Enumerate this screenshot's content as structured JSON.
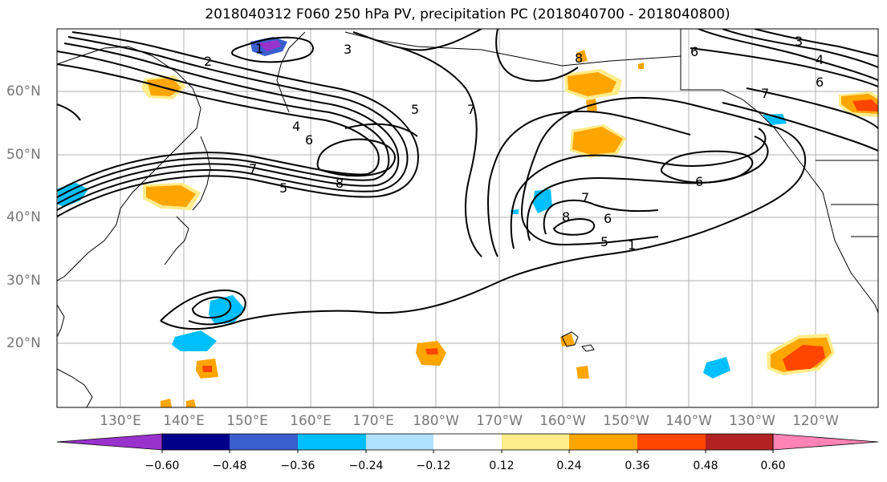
{
  "title": "2018040312 F060 250 hPa PV, precipitation PC (2018040700 - 2018040800)",
  "lat_labels": [
    "60°N",
    "50°N",
    "40°N",
    "30°N",
    "20°N"
  ],
  "lon_labels": [
    "130°E",
    "140°E",
    "150°E",
    "160°E",
    "170°E",
    "180°W",
    "170°W",
    "160°W",
    "150°W",
    "140°W",
    "130°W",
    "120°W"
  ],
  "colorbar": {
    "colors": [
      "#9932cc",
      "#00008b",
      "#3a5fcd",
      "#00bfff",
      "#b0e2ff",
      "#ffffff",
      "#ffec8b",
      "#ffa500",
      "#ff4500",
      "#b22222",
      "#ff83b4"
    ],
    "labels": [
      "−0.60",
      "−0.48",
      "−0.36",
      "−0.24",
      "−0.12",
      "0.12",
      "0.24",
      "0.36",
      "0.48",
      "0.60"
    ]
  },
  "contour_labels": [
    "2",
    "3",
    "1",
    "5",
    "7",
    "4",
    "6",
    "8",
    "7",
    "5",
    "8",
    "6",
    "3",
    "4",
    "6",
    "7",
    "6",
    "7",
    "8",
    "6",
    "5",
    "1"
  ]
}
